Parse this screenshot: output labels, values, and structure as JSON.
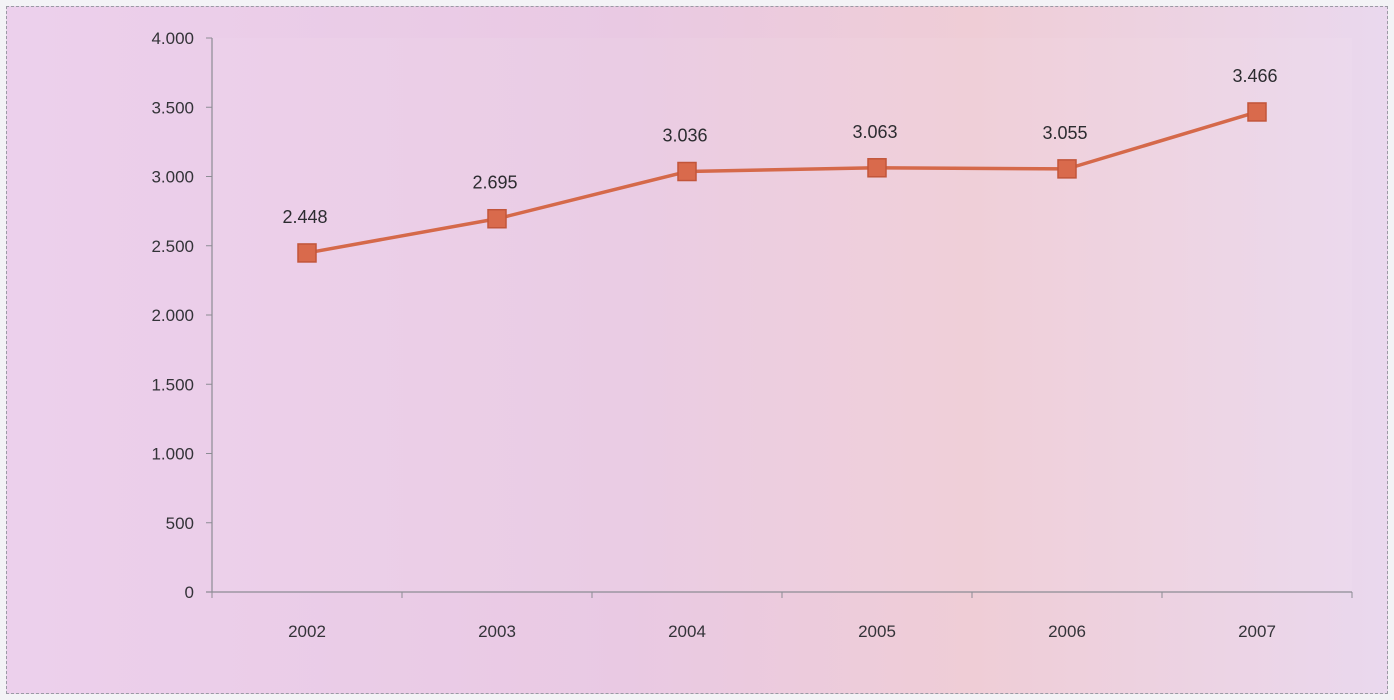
{
  "chart_data": {
    "type": "line",
    "categories": [
      "2002",
      "2003",
      "2004",
      "2005",
      "2006",
      "2007"
    ],
    "series": [
      {
        "values": [
          2448,
          2695,
          3036,
          3063,
          3055,
          3466
        ],
        "data_labels": [
          "2.448",
          "2.695",
          "3.036",
          "3.063",
          "3.055",
          "3.466"
        ],
        "color": "#d5694a",
        "marker": "square"
      }
    ],
    "y_ticks": [
      0,
      500,
      1000,
      1500,
      2000,
      2500,
      3000,
      3500,
      4000
    ],
    "y_tick_labels": [
      "0",
      "500",
      "1.000",
      "1.500",
      "2.000",
      "2.500",
      "3.000",
      "3.500",
      "4.000"
    ],
    "ylim": [
      0,
      4000
    ],
    "title": "",
    "xlabel": "",
    "ylabel": "",
    "grid": false,
    "legend": "none"
  },
  "colors": {
    "axis": "#8c8c94",
    "series_line": "#d5694a",
    "marker_fill": "#d96a4c",
    "marker_stroke": "#c2553a"
  }
}
